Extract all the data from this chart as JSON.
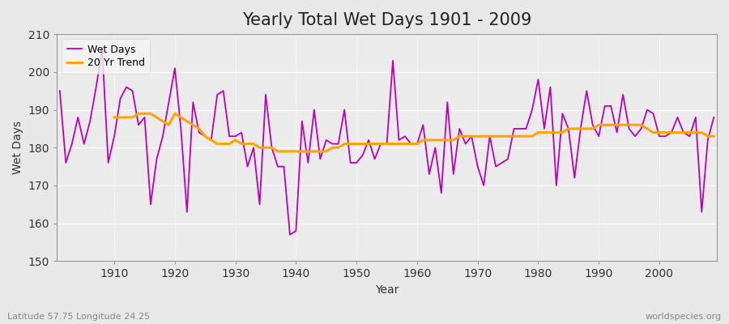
{
  "title": "Yearly Total Wet Days 1901 - 2009",
  "xlabel": "Year",
  "ylabel": "Wet Days",
  "subtitle": "Latitude 57.75 Longitude 24.25",
  "watermark": "worldspecies.org",
  "ylim": [
    150,
    210
  ],
  "years": [
    1901,
    1902,
    1903,
    1904,
    1905,
    1906,
    1907,
    1908,
    1909,
    1910,
    1911,
    1912,
    1913,
    1914,
    1915,
    1916,
    1917,
    1918,
    1919,
    1920,
    1921,
    1922,
    1923,
    1924,
    1925,
    1926,
    1927,
    1928,
    1929,
    1930,
    1931,
    1932,
    1933,
    1934,
    1935,
    1936,
    1937,
    1938,
    1939,
    1940,
    1941,
    1942,
    1943,
    1944,
    1945,
    1946,
    1947,
    1948,
    1949,
    1950,
    1951,
    1952,
    1953,
    1954,
    1955,
    1956,
    1957,
    1958,
    1959,
    1960,
    1961,
    1962,
    1963,
    1964,
    1965,
    1966,
    1967,
    1968,
    1969,
    1970,
    1971,
    1972,
    1973,
    1974,
    1975,
    1976,
    1977,
    1978,
    1979,
    1980,
    1981,
    1982,
    1983,
    1984,
    1985,
    1986,
    1987,
    1988,
    1989,
    1990,
    1991,
    1992,
    1993,
    1994,
    1995,
    1996,
    1997,
    1998,
    1999,
    2000,
    2001,
    2002,
    2003,
    2004,
    2005,
    2006,
    2007,
    2008,
    2009
  ],
  "wet_days": [
    195,
    176,
    181,
    188,
    181,
    187,
    196,
    206,
    176,
    183,
    193,
    196,
    195,
    186,
    188,
    165,
    177,
    183,
    192,
    201,
    185,
    163,
    192,
    184,
    183,
    182,
    194,
    195,
    183,
    183,
    184,
    175,
    180,
    165,
    194,
    180,
    175,
    175,
    157,
    158,
    187,
    176,
    190,
    177,
    182,
    181,
    181,
    190,
    176,
    176,
    178,
    182,
    177,
    181,
    181,
    203,
    182,
    183,
    181,
    181,
    186,
    173,
    180,
    168,
    192,
    173,
    185,
    181,
    183,
    175,
    170,
    183,
    175,
    176,
    177,
    185,
    185,
    185,
    190,
    198,
    185,
    196,
    170,
    189,
    185,
    172,
    185,
    195,
    186,
    183,
    191,
    191,
    184,
    194,
    185,
    183,
    185,
    190,
    189,
    183,
    183,
    184,
    188,
    184,
    183,
    188,
    163,
    182,
    188
  ],
  "trend_years": [
    1910,
    1911,
    1912,
    1913,
    1914,
    1915,
    1916,
    1917,
    1918,
    1919,
    1920,
    1921,
    1922,
    1923,
    1924,
    1925,
    1926,
    1927,
    1928,
    1929,
    1930,
    1931,
    1932,
    1933,
    1934,
    1935,
    1936,
    1937,
    1938,
    1939,
    1940,
    1941,
    1942,
    1943,
    1944,
    1945,
    1946,
    1947,
    1948,
    1949,
    1950,
    1951,
    1952,
    1953,
    1954,
    1955,
    1956,
    1957,
    1958,
    1959,
    1960,
    1961,
    1962,
    1963,
    1964,
    1965,
    1966,
    1967,
    1968,
    1969,
    1970,
    1971,
    1972,
    1973,
    1974,
    1975,
    1976,
    1977,
    1978,
    1979,
    1980,
    1981,
    1982,
    1983,
    1984,
    1985,
    1986,
    1987,
    1988,
    1989,
    1990,
    1991,
    1992,
    1993,
    1994,
    1995,
    1996,
    1997,
    1998,
    1999,
    2000,
    2001,
    2002,
    2003,
    2004,
    2005,
    2006,
    2007,
    2008,
    2009
  ],
  "trend_values": [
    188,
    188,
    188,
    188,
    189,
    189,
    189,
    188,
    187,
    186,
    189,
    188,
    187,
    186,
    185,
    183,
    182,
    181,
    181,
    181,
    182,
    181,
    181,
    181,
    180,
    180,
    180,
    179,
    179,
    179,
    179,
    179,
    179,
    179,
    179,
    179,
    180,
    180,
    181,
    181,
    181,
    181,
    181,
    181,
    181,
    181,
    181,
    181,
    181,
    181,
    181,
    182,
    182,
    182,
    182,
    182,
    182,
    183,
    183,
    183,
    183,
    183,
    183,
    183,
    183,
    183,
    183,
    183,
    183,
    183,
    184,
    184,
    184,
    184,
    184,
    185,
    185,
    185,
    185,
    185,
    186,
    186,
    186,
    186,
    186,
    186,
    186,
    186,
    185,
    184,
    184,
    184,
    184,
    184,
    184,
    184,
    184,
    184,
    183,
    183
  ],
  "line_color": "#BB00BB",
  "trend_color": "#FFA500",
  "figure_bg_color": "#E8E8E8",
  "plot_bg_color": "#EBEBEB",
  "legend_face_color": "#F5F5F5",
  "legend_items": [
    "Wet Days",
    "20 Yr Trend"
  ],
  "title_fontsize": 15,
  "axis_fontsize": 10,
  "yticks": [
    150,
    160,
    170,
    180,
    190,
    200,
    210
  ],
  "xticks": [
    1910,
    1920,
    1930,
    1940,
    1950,
    1960,
    1970,
    1980,
    1990,
    2000
  ]
}
